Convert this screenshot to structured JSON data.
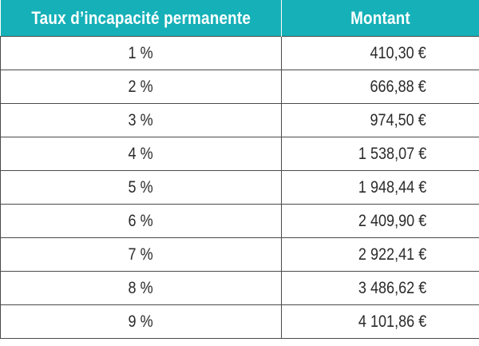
{
  "table": {
    "headers": [
      "Taux d’incapacité permanente",
      "Montant"
    ],
    "rows": [
      {
        "rate": "1 %",
        "amount": "410,30 €"
      },
      {
        "rate": "2 %",
        "amount": "666,88 €"
      },
      {
        "rate": "3 %",
        "amount": "974,50 €"
      },
      {
        "rate": "4 %",
        "amount": "1 538,07 €"
      },
      {
        "rate": "5 %",
        "amount": "1 948,44 €"
      },
      {
        "rate": "6 %",
        "amount": "2 409,90 €"
      },
      {
        "rate": "7 %",
        "amount": "2 922,41 €"
      },
      {
        "rate": "8 %",
        "amount": "3 486,62 €"
      },
      {
        "rate": "9 %",
        "amount": "4 101,86 €"
      }
    ]
  },
  "colors": {
    "header_background": "#16b1b8",
    "header_text": "#ffffff",
    "border": "#4a4a4a",
    "cell_text": "#2b2b2b"
  }
}
